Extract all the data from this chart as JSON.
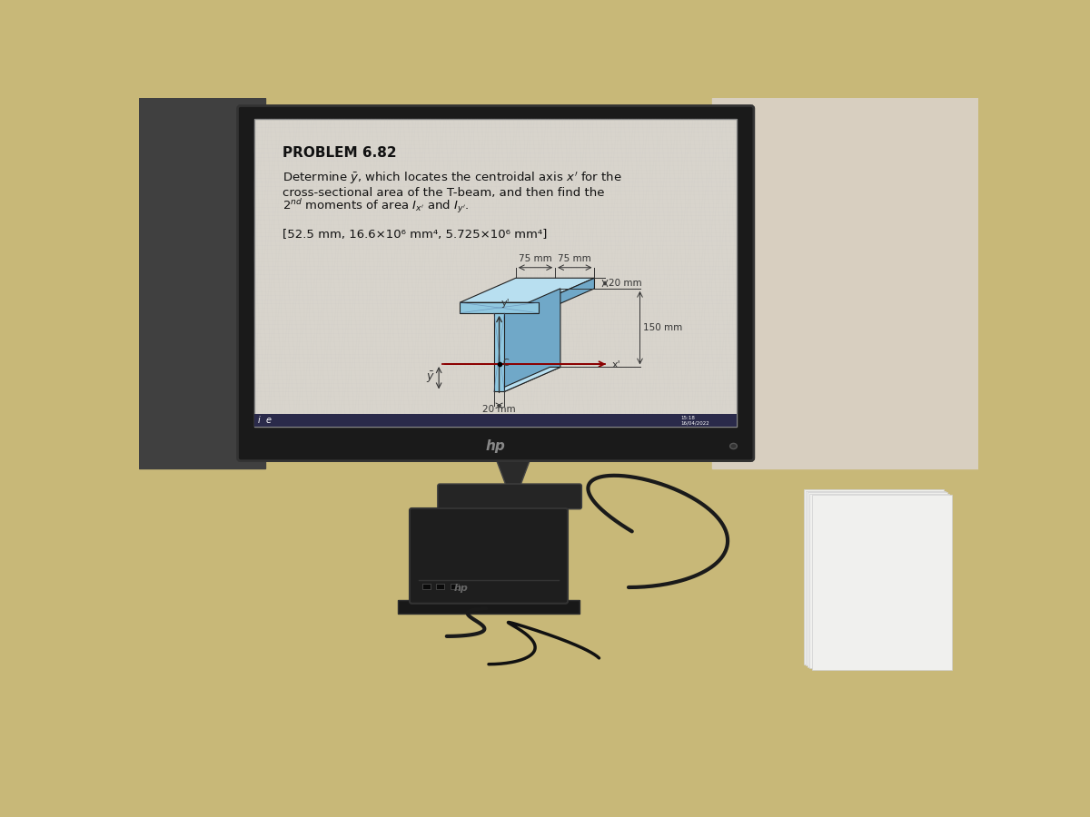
{
  "title": "PROBLEM 6.82",
  "line1": "Determine $\\bar{y}$, which locates the centroidal axis $x'$ for the",
  "line2": "cross-sectional area of the T-beam, and then find the",
  "line3": "$2^{nd}$ moments of area $I_{x'}$ and $I_{y'}$.",
  "answer": "[52.5 mm, 16.6×10⁶ mm⁴, 5.725×10⁶ mm⁴]",
  "screen_bg": "#d8d4cc",
  "monitor_bezel": "#1a1a1a",
  "desk_color": "#c8b878",
  "face_front": "#90c8e0",
  "face_top": "#b8dff0",
  "face_side": "#70a8c8",
  "edge_color": "#202020",
  "axis_color": "#8b0000",
  "text_color": "#111111",
  "title_size": 11,
  "body_size": 9.5
}
